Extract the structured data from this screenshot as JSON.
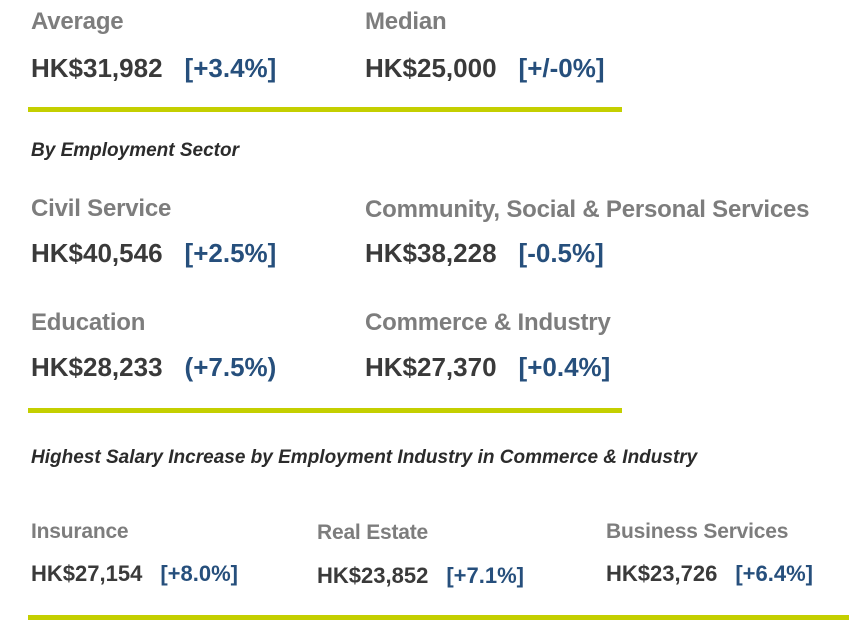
{
  "summary": {
    "average": {
      "label": "Average",
      "value": "HK$31,982",
      "change": "[+3.4%]"
    },
    "median": {
      "label": "Median",
      "value": "HK$25,000",
      "change": "[+/-0%]"
    }
  },
  "sector_heading": "By Employment Sector",
  "sectors": [
    {
      "label": "Civil Service",
      "value": "HK$40,546",
      "change": "[+2.5%]"
    },
    {
      "label": "Community, Social & Personal Services",
      "value": "HK$38,228",
      "change": "[-0.5%]"
    },
    {
      "label": "Education",
      "value": "HK$28,233",
      "change": "(+7.5%)"
    },
    {
      "label": "Commerce & Industry",
      "value": "HK$27,370",
      "change": "[+0.4%]"
    }
  ],
  "industry_heading": "Highest Salary Increase by Employment Industry in Commerce & Industry",
  "industries": [
    {
      "label": "Insurance",
      "value": "HK$27,154",
      "change": "[+8.0%]"
    },
    {
      "label": "Real Estate",
      "value": "HK$23,852",
      "change": "[+7.1%]"
    },
    {
      "label": "Business Services",
      "value": "HK$23,726",
      "change": "[+6.4%]"
    }
  ],
  "colors": {
    "accent_rule": "#c4cf00",
    "change_text": "#264f7c",
    "label_text": "#7d7d7d",
    "value_text": "#3a3a3a"
  }
}
